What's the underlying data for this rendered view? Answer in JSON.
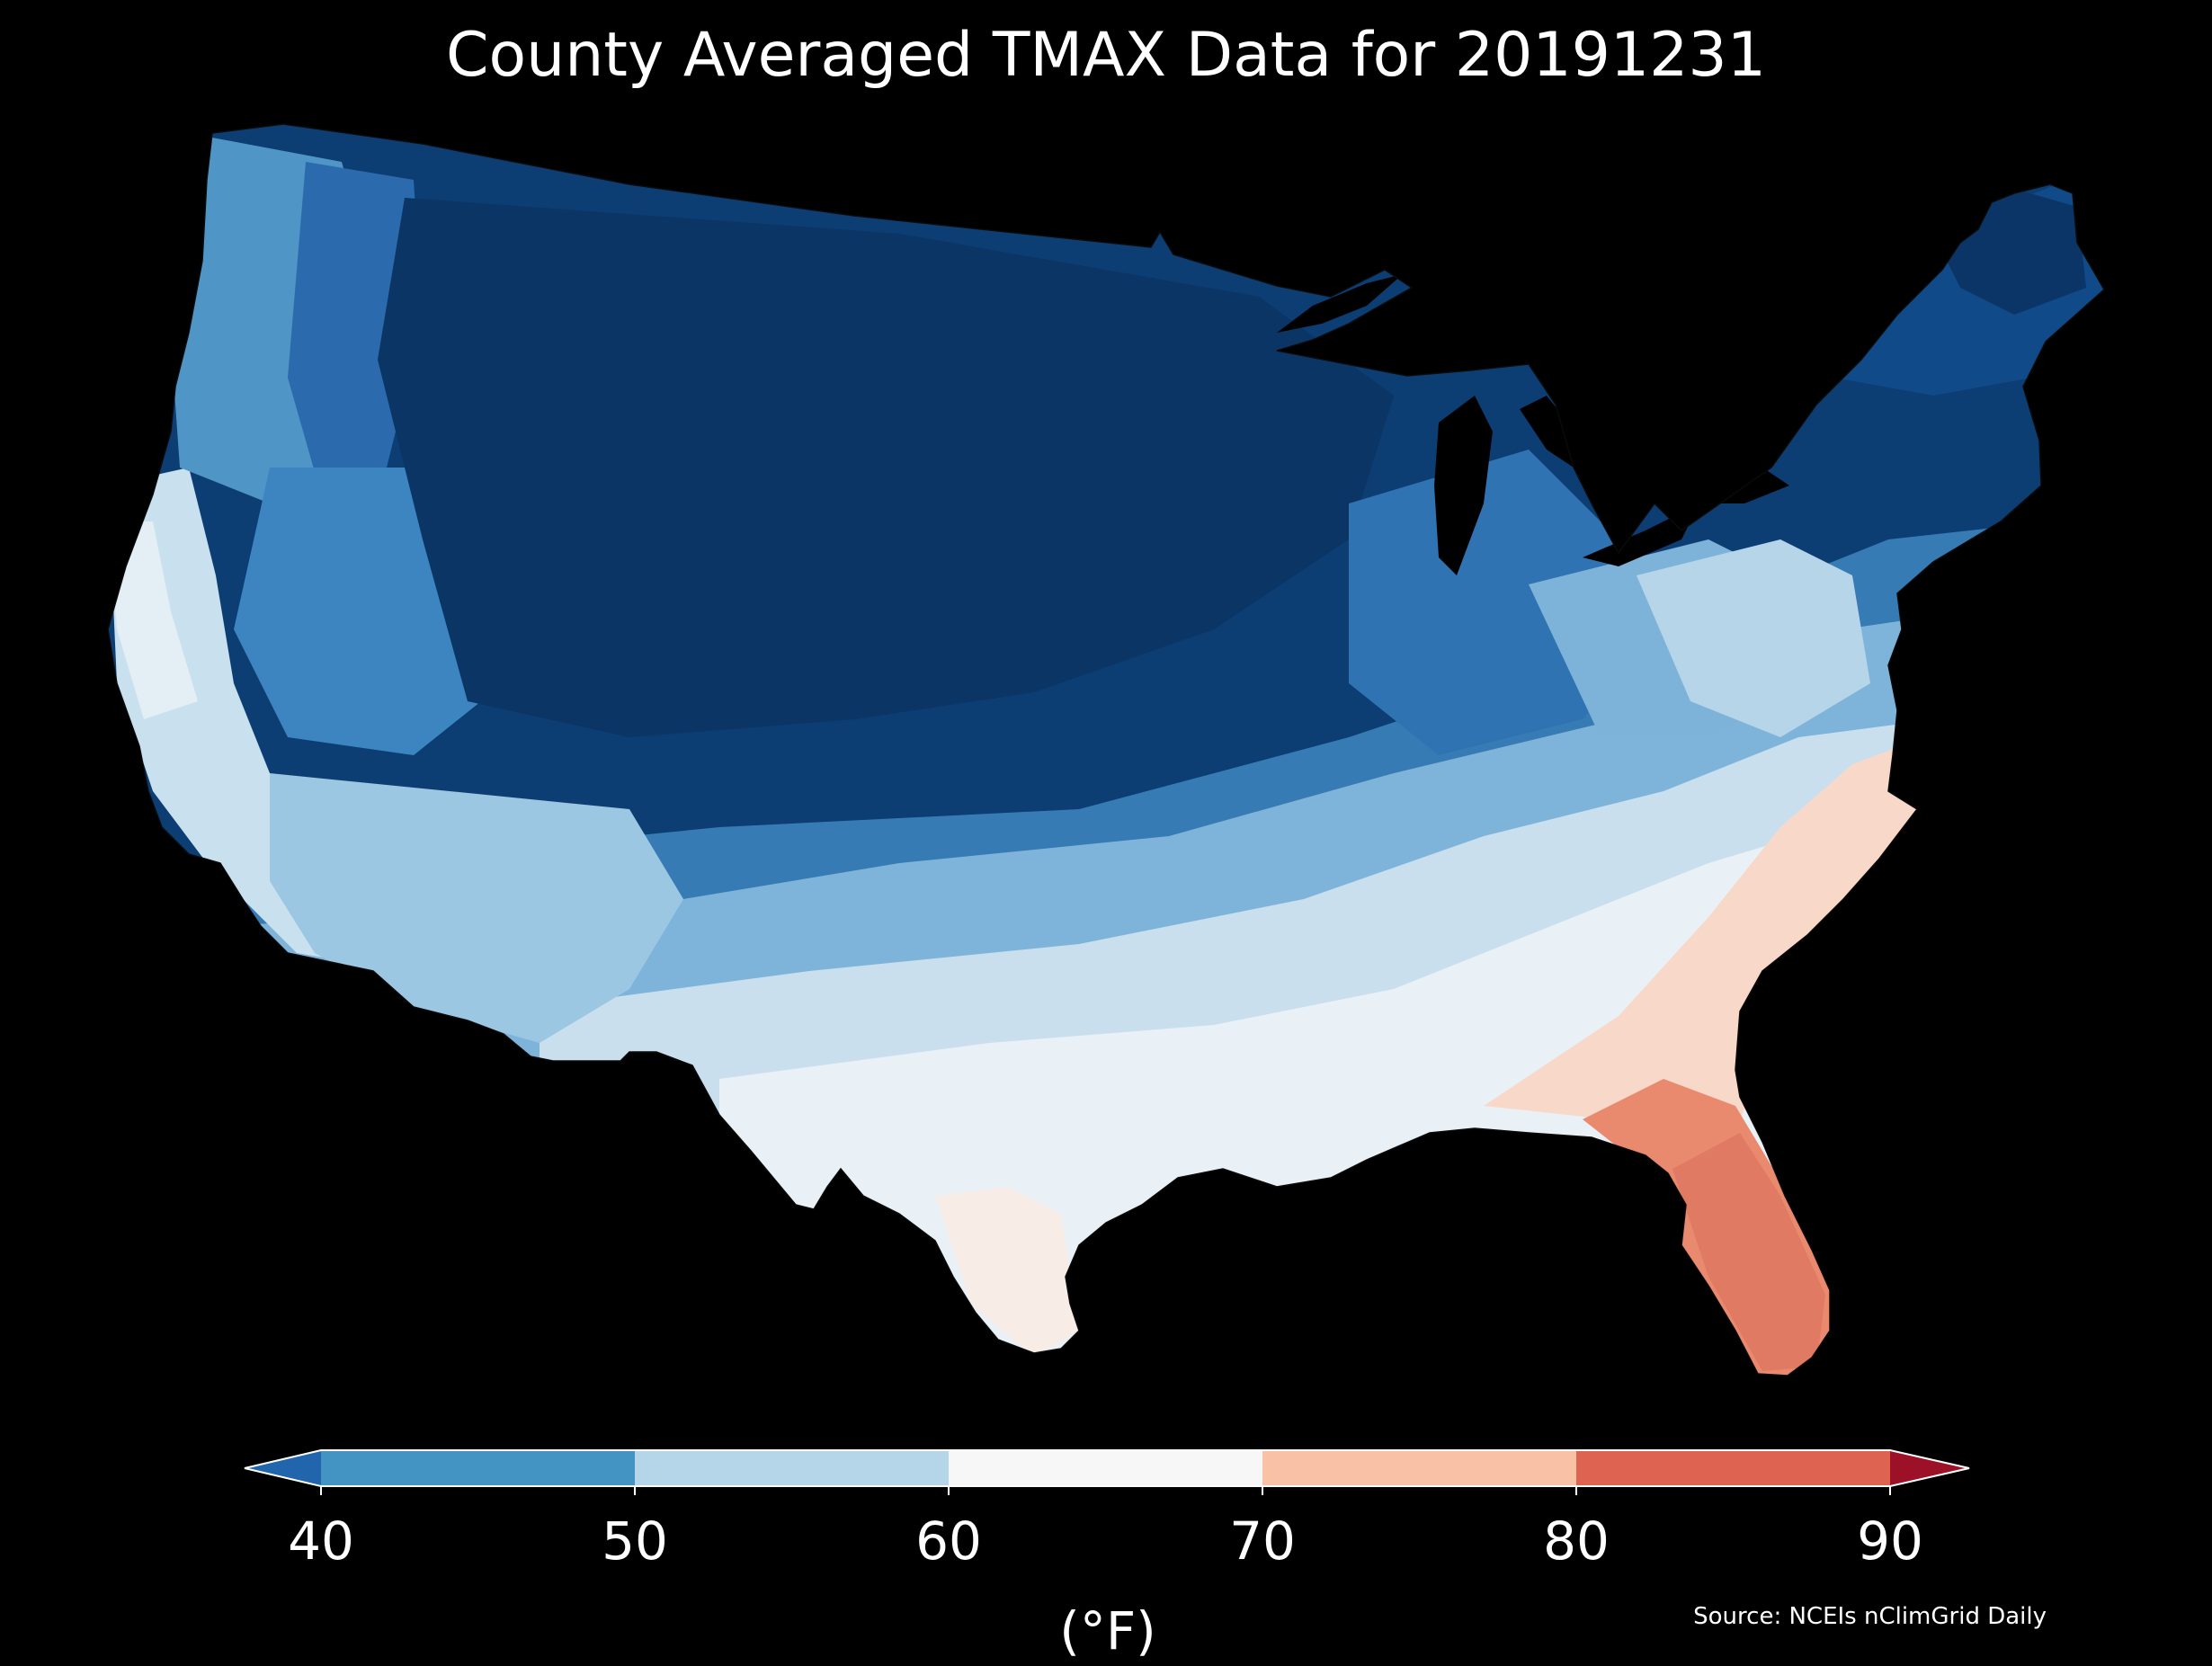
{
  "title": "County Averaged TMAX Data for 20191231",
  "source": "Source: NCEIs nClimGrid Daily",
  "colorbar": {
    "unit_label": "(°F)",
    "ticks": [
      "40",
      "50",
      "60",
      "70",
      "80",
      "90"
    ],
    "extend": "both",
    "bins": [
      {
        "range": "<40",
        "color": "#2166ac"
      },
      {
        "range": "40-50",
        "color": "#4393c3"
      },
      {
        "range": "50-60",
        "color": "#b5d6e9"
      },
      {
        "range": "60-70",
        "color": "#f7f7f7"
      },
      {
        "range": "70-80",
        "color": "#f9c2a6"
      },
      {
        "range": "80-90",
        "color": "#de6451"
      },
      {
        "range": ">90",
        "color": "#9c1127"
      }
    ]
  },
  "map": {
    "variable": "TMAX",
    "region": "Contiguous United States, county level",
    "background": "#000000",
    "regional_pattern": [
      {
        "region": "Northern Rockies / Plains / Upper Midwest",
        "approx_tmax_f": 32,
        "color": "#0b3c72"
      },
      {
        "region": "Pacific Northwest / Great Basin",
        "approx_tmax_f": 45,
        "color": "#3a7dbb"
      },
      {
        "region": "New England",
        "approx_tmax_f": 38,
        "color": "#124d8c"
      },
      {
        "region": "California coast / Desert Southwest",
        "approx_tmax_f": 57,
        "color": "#b8d7e9"
      },
      {
        "region": "Texas / Lower Mississippi Valley",
        "approx_tmax_f": 62,
        "color": "#eef3f7"
      },
      {
        "region": "Carolinas / Georgia",
        "approx_tmax_f": 71,
        "color": "#f8d5c4"
      },
      {
        "region": "Florida peninsula",
        "approx_tmax_f": 79,
        "color": "#e98a6f"
      }
    ]
  }
}
